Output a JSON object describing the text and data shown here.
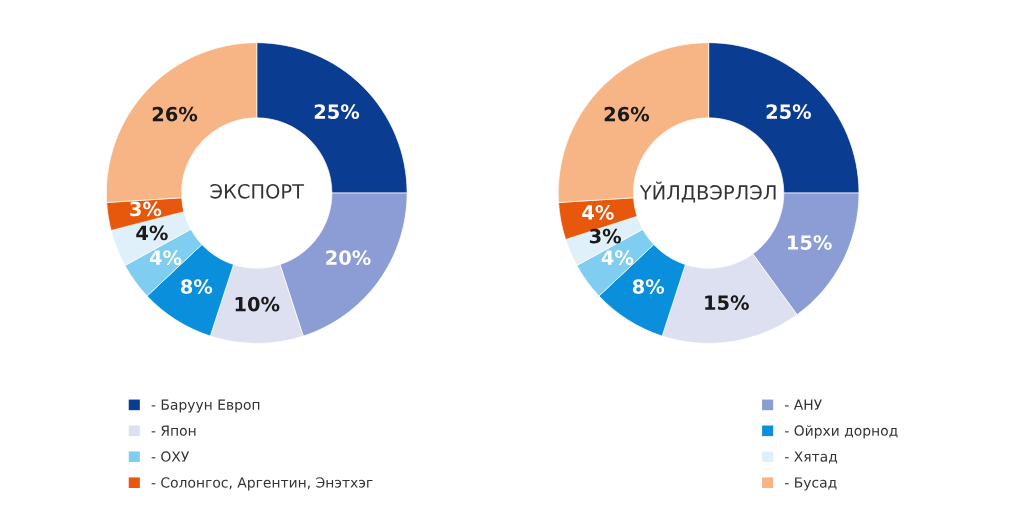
{
  "chart_data": [
    {
      "type": "donut",
      "title": "ЭКСПОРТ",
      "categories": [
        "- Баруун Европ",
        "- АНУ",
        "- Япон",
        "- Ойрхи дорнод",
        "- ОХУ",
        "- Хятад",
        "- Солонгос, Аргентин, Энэтхэг",
        "- Бусад"
      ],
      "values": [
        25,
        20,
        10,
        8,
        4,
        4,
        3,
        26
      ],
      "value_labels": [
        "25%",
        "20%",
        "10%",
        "8%",
        "4%",
        "4%",
        "3%",
        "26%"
      ],
      "colors": [
        "#0a3d91",
        "#8c9cd4",
        "#dde0f0",
        "#0a8fdc",
        "#7fcdf0",
        "#dff0fa",
        "#e8580c",
        "#f7b484"
      ],
      "legend": "bottom"
    },
    {
      "type": "donut",
      "title": "ҮЙЛДВЭРЛЭЛ",
      "categories": [
        null,
        null,
        null,
        null,
        null,
        null,
        null,
        null
      ],
      "values": [
        25,
        15,
        15,
        8,
        4,
        3,
        4,
        26
      ],
      "value_labels": [
        "25%",
        "15%",
        "15%",
        "8%",
        "4%",
        "3%",
        "4%",
        "26%"
      ],
      "colors": [
        "#0a3d91",
        "#8c9cd4",
        "#dde0f0",
        "#0a8fdc",
        "#7fcdf0",
        "#dff0fa",
        "#e8580c",
        "#f7b484"
      ]
    }
  ]
}
